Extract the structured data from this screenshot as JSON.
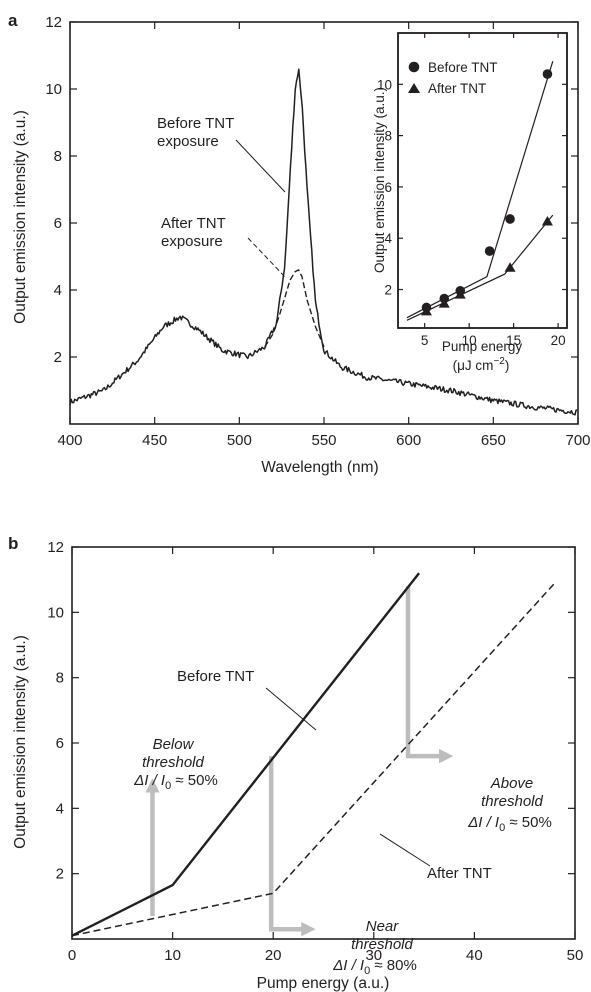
{
  "panels": {
    "a": "a",
    "b": "b"
  },
  "chart_data": [
    {
      "type": "line",
      "panel": "a",
      "xlabel": "Wavelength (nm)",
      "ylabel": "Output emission intensity (a.u.)",
      "xlim": [
        400,
        700
      ],
      "ylim": [
        0,
        12
      ],
      "xticks": [
        400,
        450,
        500,
        550,
        600,
        650,
        700
      ],
      "yticks": [
        2,
        4,
        6,
        8,
        10,
        12
      ],
      "series": [
        {
          "style": "solid",
          "x": [
            400,
            420,
            440,
            455,
            465,
            475,
            490,
            505,
            515,
            522,
            527,
            530,
            533,
            535,
            537,
            540,
            545,
            550,
            560,
            575,
            600,
            625,
            650,
            675,
            700
          ],
          "y": [
            0.65,
            1.0,
            1.9,
            2.9,
            3.2,
            2.85,
            2.2,
            2.0,
            2.3,
            3.0,
            4.8,
            7.5,
            10.0,
            10.6,
            9.6,
            7.0,
            3.6,
            2.2,
            1.7,
            1.4,
            1.2,
            1.0,
            0.7,
            0.5,
            0.35
          ]
        },
        {
          "style": "dashed",
          "x": [
            515,
            520,
            524,
            527,
            530,
            533,
            535,
            537,
            540,
            545,
            550
          ],
          "y": [
            2.3,
            2.7,
            3.3,
            3.8,
            4.3,
            4.55,
            4.6,
            4.4,
            3.7,
            2.9,
            2.3
          ]
        }
      ],
      "annotations": [
        {
          "lines": [
            "Before TNT",
            "exposure"
          ]
        },
        {
          "lines": [
            "After TNT",
            "exposure"
          ]
        }
      ],
      "inset": {
        "type": "scatter",
        "xlabel": "Pump energy",
        "xlabel_unit_main": "(μJ cm",
        "xlabel_unit_sup": "−2",
        "xlabel_unit_close": ")",
        "ylabel": "Output emission intensity (a.u.)",
        "xlim": [
          2,
          21
        ],
        "ylim": [
          0.5,
          12
        ],
        "xticks": [
          5,
          10,
          15,
          20
        ],
        "yticks": [
          2,
          4,
          6,
          8,
          10
        ],
        "legend_placement": "top-left",
        "series": [
          {
            "name": "Before TNT",
            "marker": "circle",
            "x": [
              5.2,
              7.2,
              9.0,
              12.3,
              14.6,
              18.8
            ],
            "y": [
              1.3,
              1.65,
              1.95,
              3.5,
              4.75,
              10.4
            ]
          },
          {
            "name": "After TNT",
            "marker": "triangle",
            "x": [
              5.2,
              7.2,
              9.0,
              14.6,
              18.8
            ],
            "y": [
              1.15,
              1.45,
              1.8,
              2.85,
              4.65
            ]
          }
        ],
        "fit_lines": [
          {
            "x": [
              3.0,
              12.0,
              19.4
            ],
            "y": [
              0.9,
              2.5,
              10.9
            ]
          },
          {
            "x": [
              3.0,
              14.0,
              19.4
            ],
            "y": [
              0.8,
              2.6,
              4.9
            ]
          }
        ]
      }
    },
    {
      "type": "line",
      "panel": "b",
      "xlabel": "Pump energy (a.u.)",
      "ylabel": "Output emission intensity (a.u.)",
      "xlim": [
        0,
        50
      ],
      "ylim": [
        0,
        12
      ],
      "xticks": [
        0,
        10,
        20,
        30,
        40,
        50
      ],
      "yticks": [
        2,
        4,
        6,
        8,
        10,
        12
      ],
      "series": [
        {
          "name": "Before TNT",
          "style": "solid",
          "x": [
            0,
            10,
            34.5
          ],
          "y": [
            0.1,
            1.65,
            11.2
          ]
        },
        {
          "name": "After TNT",
          "style": "dashed",
          "x": [
            0,
            20,
            48
          ],
          "y": [
            0.1,
            1.4,
            10.9
          ]
        }
      ],
      "arrows": [
        {
          "x": 8,
          "y_from": 0.7,
          "y_to": 4.7,
          "direction": "up"
        },
        {
          "x": 19.8,
          "y_from": 5.6,
          "y_to": 0.3,
          "bend_to_x": 23.5
        },
        {
          "x": 33.4,
          "y_from": 10.8,
          "y_to": 5.6,
          "bend_to_x": 37.2
        }
      ],
      "annotations": [
        {
          "lines": [
            "Below",
            "threshold"
          ],
          "delta": "ΔI / I",
          "sub": "0",
          "pct": " ≈ 50%"
        },
        {
          "lines": [
            "Near",
            "threshold"
          ],
          "delta": "ΔI / I",
          "sub": "0",
          "pct": " ≈ 80%"
        },
        {
          "lines": [
            "Above",
            "threshold"
          ],
          "delta": "ΔI / I",
          "sub": "0",
          "pct": " ≈ 50%"
        },
        {
          "text": "Before TNT"
        },
        {
          "text": "After TNT"
        }
      ]
    }
  ]
}
